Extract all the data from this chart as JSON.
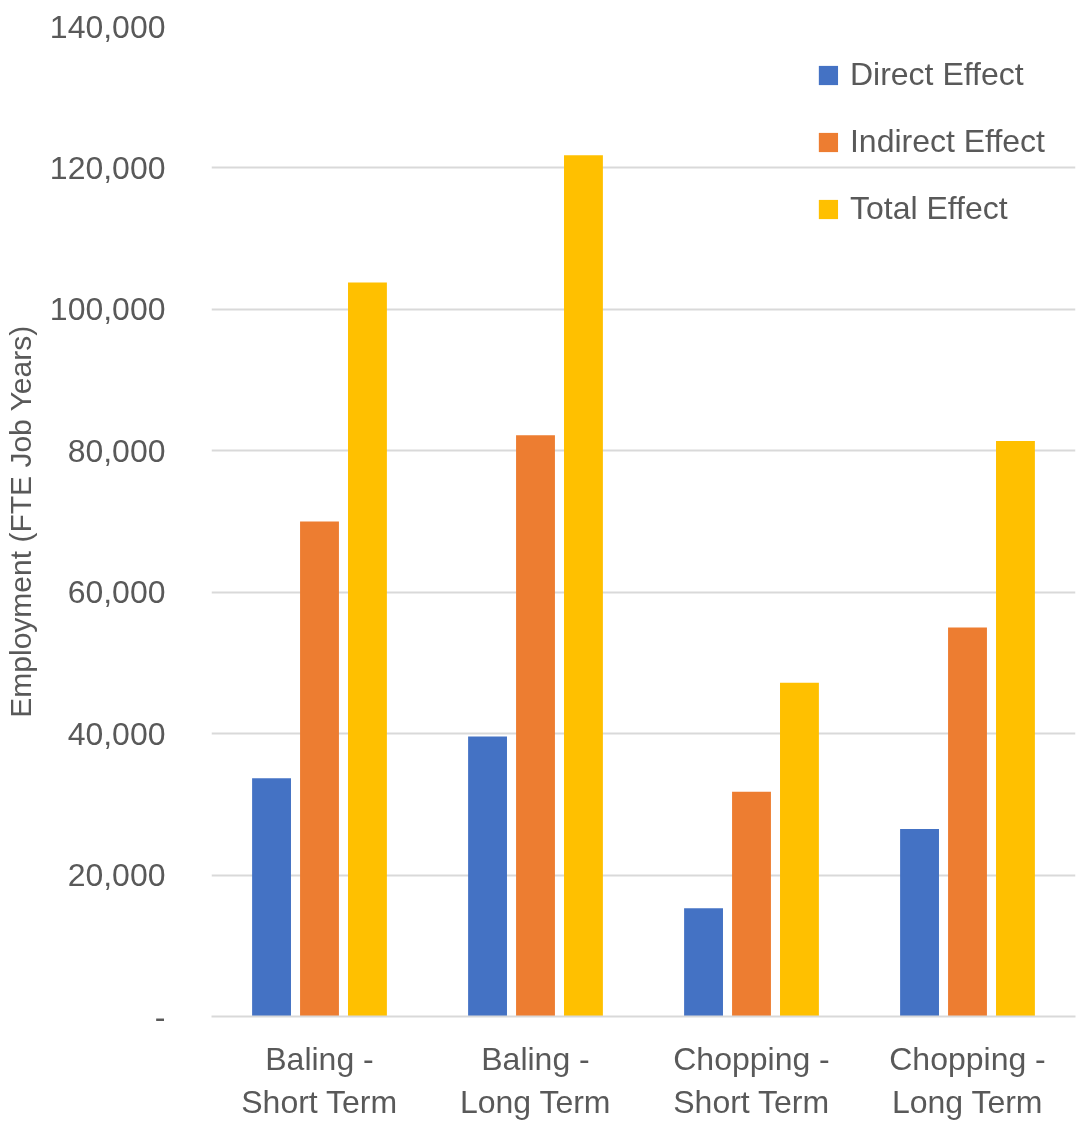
{
  "chart_data": {
    "type": "bar",
    "ylabel": "Employment (FTE Job Years)",
    "categories": [
      "Baling - Short Term",
      "Baling - Long Term",
      "Chopping - Short Term",
      "Chopping - Long Term"
    ],
    "series": [
      {
        "name": "Direct Effect",
        "color": "#4472c4",
        "values": [
          33700,
          39600,
          15300,
          26500
        ]
      },
      {
        "name": "Indirect Effect",
        "color": "#ed7d31",
        "values": [
          70000,
          82200,
          31800,
          55000
        ]
      },
      {
        "name": "Total Effect",
        "color": "#ffc000",
        "values": [
          103800,
          121800,
          47200,
          81400
        ]
      }
    ],
    "ylim": [
      0,
      140000
    ],
    "yticks": [
      {
        "value": 0,
        "label": "-"
      },
      {
        "value": 20000,
        "label": "20,000"
      },
      {
        "value": 40000,
        "label": "40,000"
      },
      {
        "value": 60000,
        "label": "60,000"
      },
      {
        "value": 80000,
        "label": "80,000"
      },
      {
        "value": 100000,
        "label": "100,000"
      },
      {
        "value": 120000,
        "label": "120,000"
      },
      {
        "value": 140000,
        "label": "140,000"
      }
    ],
    "grid": "y",
    "legend": "top right"
  }
}
